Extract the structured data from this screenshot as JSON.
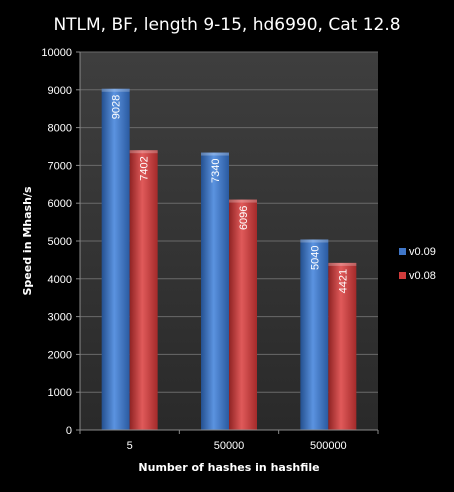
{
  "chart_data": {
    "type": "bar",
    "title": "NTLM, BF, length 9-15, hd6990, Cat 12.8",
    "xlabel": "Number of hashes in hashfile",
    "ylabel": "Speed in Mhash/s",
    "categories": [
      "5",
      "50000",
      "500000"
    ],
    "series": [
      {
        "name": "v0.09",
        "values": [
          9028,
          7340,
          5040
        ],
        "color": "#3f76c8"
      },
      {
        "name": "v0.08",
        "values": [
          7402,
          6096,
          4421
        ],
        "color": "#cf3b3b"
      }
    ],
    "ylim": [
      0,
      10000
    ],
    "yticks": [
      "0",
      "1000",
      "2000",
      "3000",
      "4000",
      "5000",
      "6000",
      "7000",
      "8000",
      "9000",
      "10000"
    ],
    "grid": true,
    "legend_position": "right",
    "value_labels": "inside-top-rotated"
  }
}
